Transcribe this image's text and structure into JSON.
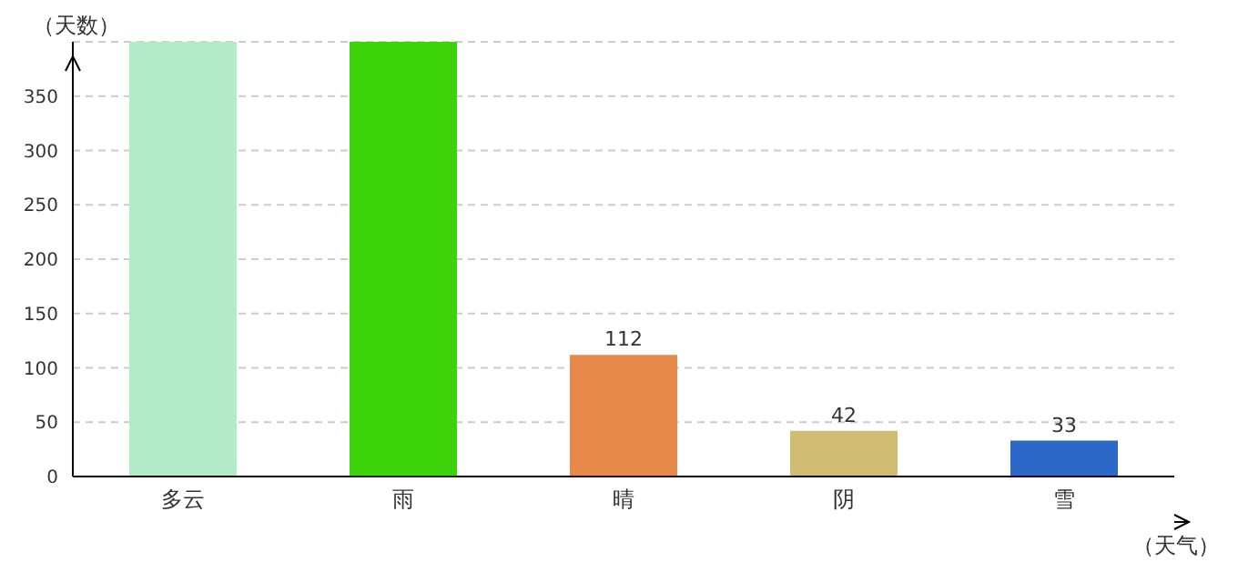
{
  "chart_data": {
    "type": "bar",
    "xlabel": "（天气）",
    "ylabel": "（天数）",
    "categories": [
      "多云",
      "雨",
      "晴",
      "阴",
      "雪"
    ],
    "values": [
      400,
      400,
      112,
      42,
      33
    ],
    "colors": [
      "#b3ebc8",
      "#3dd30b",
      "#e6894a",
      "#d1bc74",
      "#2b68c8"
    ],
    "value_labels": [
      null,
      null,
      "112",
      "42",
      "33"
    ],
    "ylim": [
      0,
      400
    ],
    "yticks": [
      0,
      50,
      100,
      150,
      200,
      250,
      300,
      350
    ],
    "grid": "y"
  }
}
